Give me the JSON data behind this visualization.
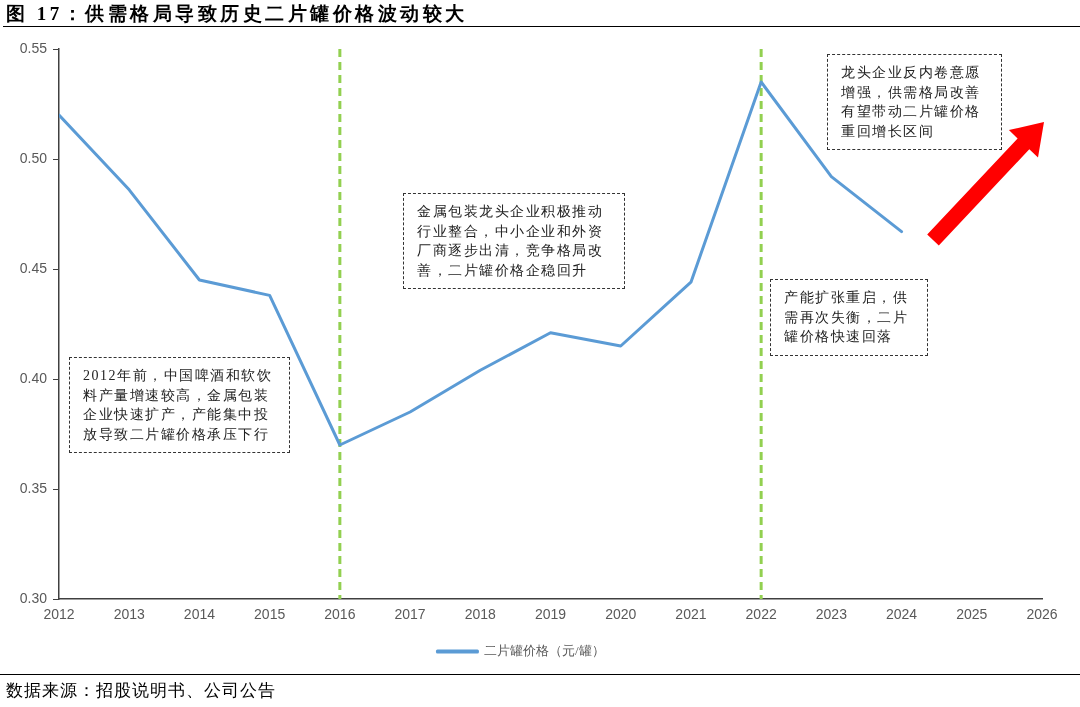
{
  "chart_data": {
    "type": "line",
    "title": "图 17：供需格局导致历史二片罐价格波动较大",
    "x": [
      2012,
      2013,
      2014,
      2015,
      2016,
      2017,
      2018,
      2019,
      2020,
      2021,
      2022,
      2023,
      2024
    ],
    "xlim": [
      2012,
      2026
    ],
    "xticks": [
      2012,
      2013,
      2014,
      2015,
      2016,
      2017,
      2018,
      2019,
      2020,
      2021,
      2022,
      2023,
      2024,
      2025,
      2026
    ],
    "series": [
      {
        "name": "二片罐价格（元/罐）",
        "color": "#5b9bd5",
        "values": [
          0.52,
          0.486,
          0.445,
          0.438,
          0.37,
          0.385,
          0.404,
          0.421,
          0.415,
          0.444,
          0.535,
          0.492,
          0.467
        ]
      }
    ],
    "ylim": [
      0.3,
      0.55
    ],
    "yticks": [
      {
        "value": 0.3,
        "label": "0.30"
      },
      0.35,
      {
        "value": 0.4,
        "label": "0.40"
      },
      0.45,
      {
        "value": 0.5,
        "label": "0.50"
      },
      0.55
    ],
    "ref_lines": [
      {
        "axis": "x",
        "value": 2016,
        "color": "#92d050",
        "line_style": "dashed"
      },
      {
        "axis": "x",
        "value": 2022,
        "color": "#92d050",
        "line_style": "dashed"
      }
    ],
    "annotations": [
      "2012年前，中国啤酒和软饮料产量增速较高，金属包装企业快速扩产，产能集中投放导致二片罐价格承压下行",
      "金属包装龙头企业积极推动行业整合，中小企业和外资厂商逐步出清，竞争格局改善，二片罐价格企稳回升",
      "龙头企业反内卷意愿增强，供需格局改善有望带动二片罐价格重回增长区间",
      "产能扩张重启，供需再次失衡，二片罐价格快速回落",
      "数据来源：招股说明书、公司公告"
    ],
    "marker": "none",
    "grid": false,
    "legend": "bottom"
  }
}
